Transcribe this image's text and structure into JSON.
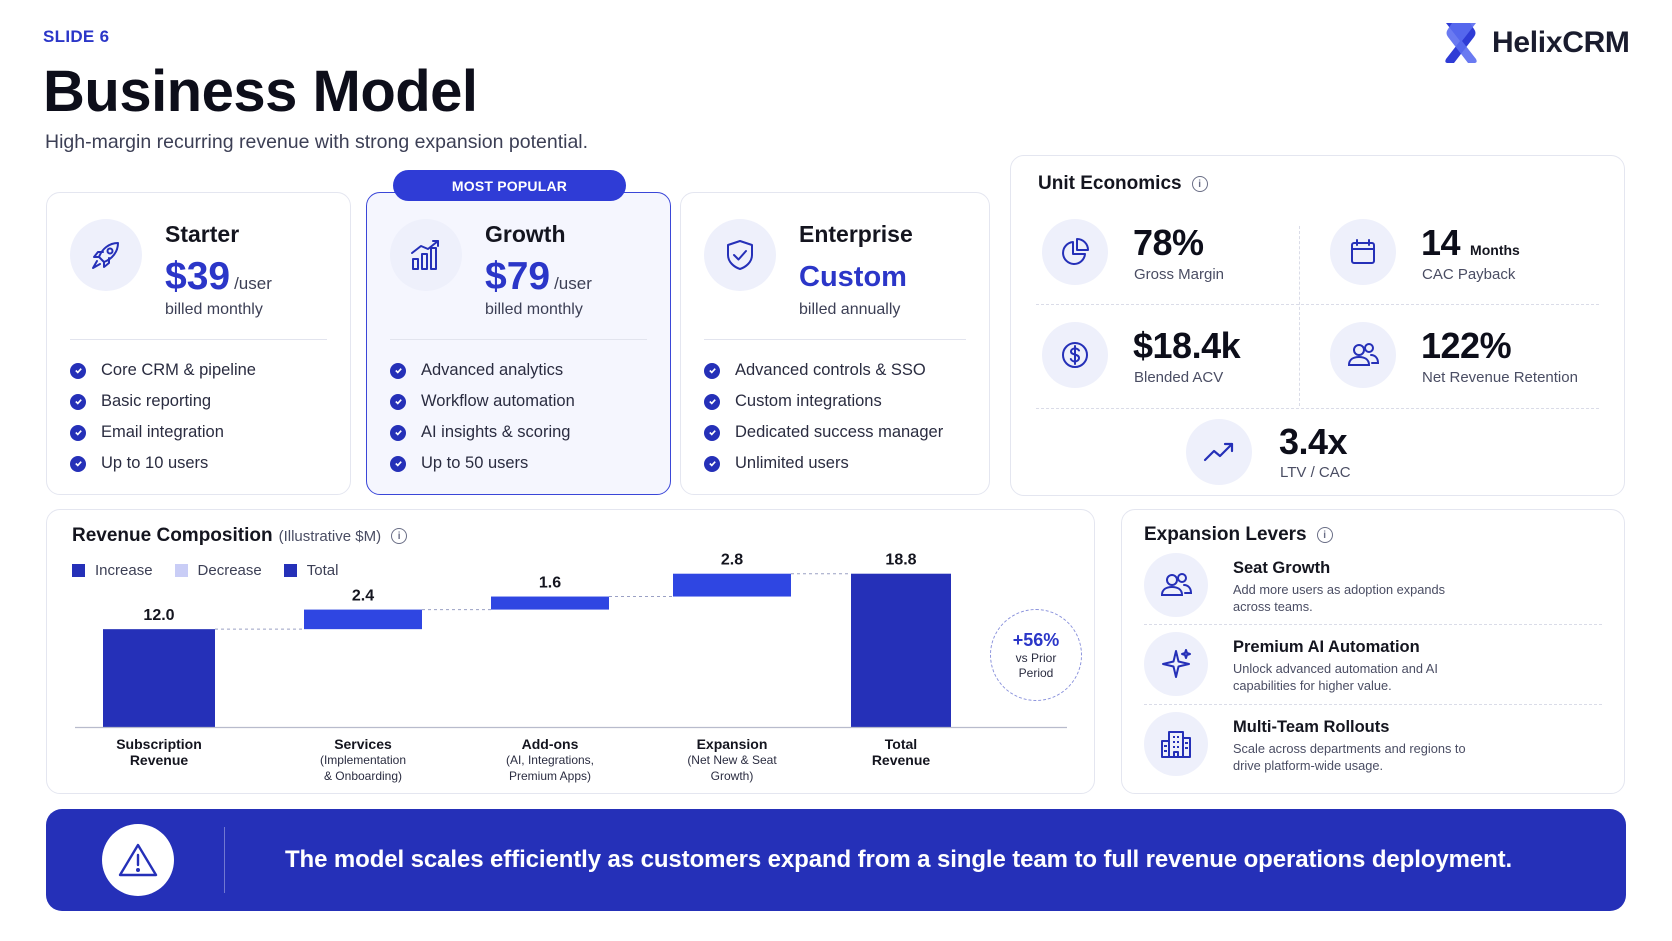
{
  "header": {
    "slide_label": "SLIDE 6",
    "title": "Business Model",
    "subtitle": "High-margin recurring revenue with strong expansion potential.",
    "brand": "HelixCRM"
  },
  "plans": [
    {
      "name": "Starter",
      "price": "$39",
      "unit": "/user",
      "billing": "billed monthly",
      "icon": "rocket-icon",
      "features": [
        "Core CRM & pipeline",
        "Basic reporting",
        "Email integration",
        "Up to 10 users"
      ]
    },
    {
      "name": "Growth",
      "price": "$79",
      "unit": "/user",
      "billing": "billed monthly",
      "icon": "bar-chart-icon",
      "badge": "MOST POPULAR",
      "features": [
        "Advanced analytics",
        "Workflow automation",
        "AI insights & scoring",
        "Up to 50 users"
      ]
    },
    {
      "name": "Enterprise",
      "price": "Custom",
      "unit": "",
      "billing": "billed annually",
      "icon": "shield-check-icon",
      "features": [
        "Advanced controls & SSO",
        "Custom integrations",
        "Dedicated success manager",
        "Unlimited users"
      ]
    }
  ],
  "unit_economics": {
    "title": "Unit Economics",
    "metrics": [
      {
        "value": "78%",
        "suffix": "",
        "label": "Gross Margin",
        "icon": "pie-chart-icon"
      },
      {
        "value": "14",
        "suffix": "Months",
        "label": "CAC Payback",
        "icon": "calendar-icon"
      },
      {
        "value": "$18.4k",
        "suffix": "",
        "label": "Blended ACV",
        "icon": "dollar-icon"
      },
      {
        "value": "122%",
        "suffix": "",
        "label": "Net Revenue Retention",
        "icon": "users-icon"
      },
      {
        "value": "3.4x",
        "suffix": "",
        "label": "LTV / CAC",
        "icon": "trend-up-icon"
      }
    ]
  },
  "revenue": {
    "title": "Revenue Composition",
    "subtitle": "(Illustrative $M)",
    "legend": [
      "Increase",
      "Decrease",
      "Total"
    ],
    "callout": {
      "value": "+56%",
      "line1": "vs Prior",
      "line2": "Period"
    }
  },
  "chart_data": {
    "type": "bar",
    "title": "Revenue Composition",
    "subtitle": "(Illustrative $M)",
    "variant": "waterfall",
    "categories": [
      {
        "main": "Subscription",
        "sub": "Revenue",
        "detail": []
      },
      {
        "main": "Services",
        "sub": "",
        "detail": [
          "(Implementation",
          "& Onboarding)"
        ]
      },
      {
        "main": "Add-ons",
        "sub": "",
        "detail": [
          "(AI, Integrations,",
          "Premium Apps)"
        ]
      },
      {
        "main": "Expansion",
        "sub": "",
        "detail": [
          "(Net New & Seat",
          "Growth)"
        ]
      },
      {
        "main": "Total",
        "sub": "Revenue",
        "detail": []
      }
    ],
    "values": [
      12.0,
      2.4,
      1.6,
      2.8,
      18.8
    ],
    "labels": [
      "12.0",
      "2.4",
      "1.6",
      "2.8",
      "18.8"
    ],
    "kinds": [
      "total",
      "increase",
      "increase",
      "increase",
      "total"
    ],
    "ylim": [
      0,
      19.5
    ],
    "colors": {
      "increase": "#2f46e2",
      "decrease": "#c9cdf6",
      "total": "#2530b8"
    }
  },
  "expansion": {
    "title": "Expansion Levers",
    "items": [
      {
        "title": "Seat Growth",
        "desc": "Add more users as adoption expands across teams.",
        "icon": "users-icon"
      },
      {
        "title": "Premium AI Automation",
        "desc": "Unlock advanced automation and AI capabilities for higher value.",
        "icon": "sparkle-icon"
      },
      {
        "title": "Multi-Team Rollouts",
        "desc": "Scale across departments and regions to drive platform-wide usage.",
        "icon": "building-icon"
      }
    ]
  },
  "banner": {
    "text": "The model scales efficiently as customers expand from a single team to full revenue operations deployment.",
    "icon": "warning-icon"
  }
}
